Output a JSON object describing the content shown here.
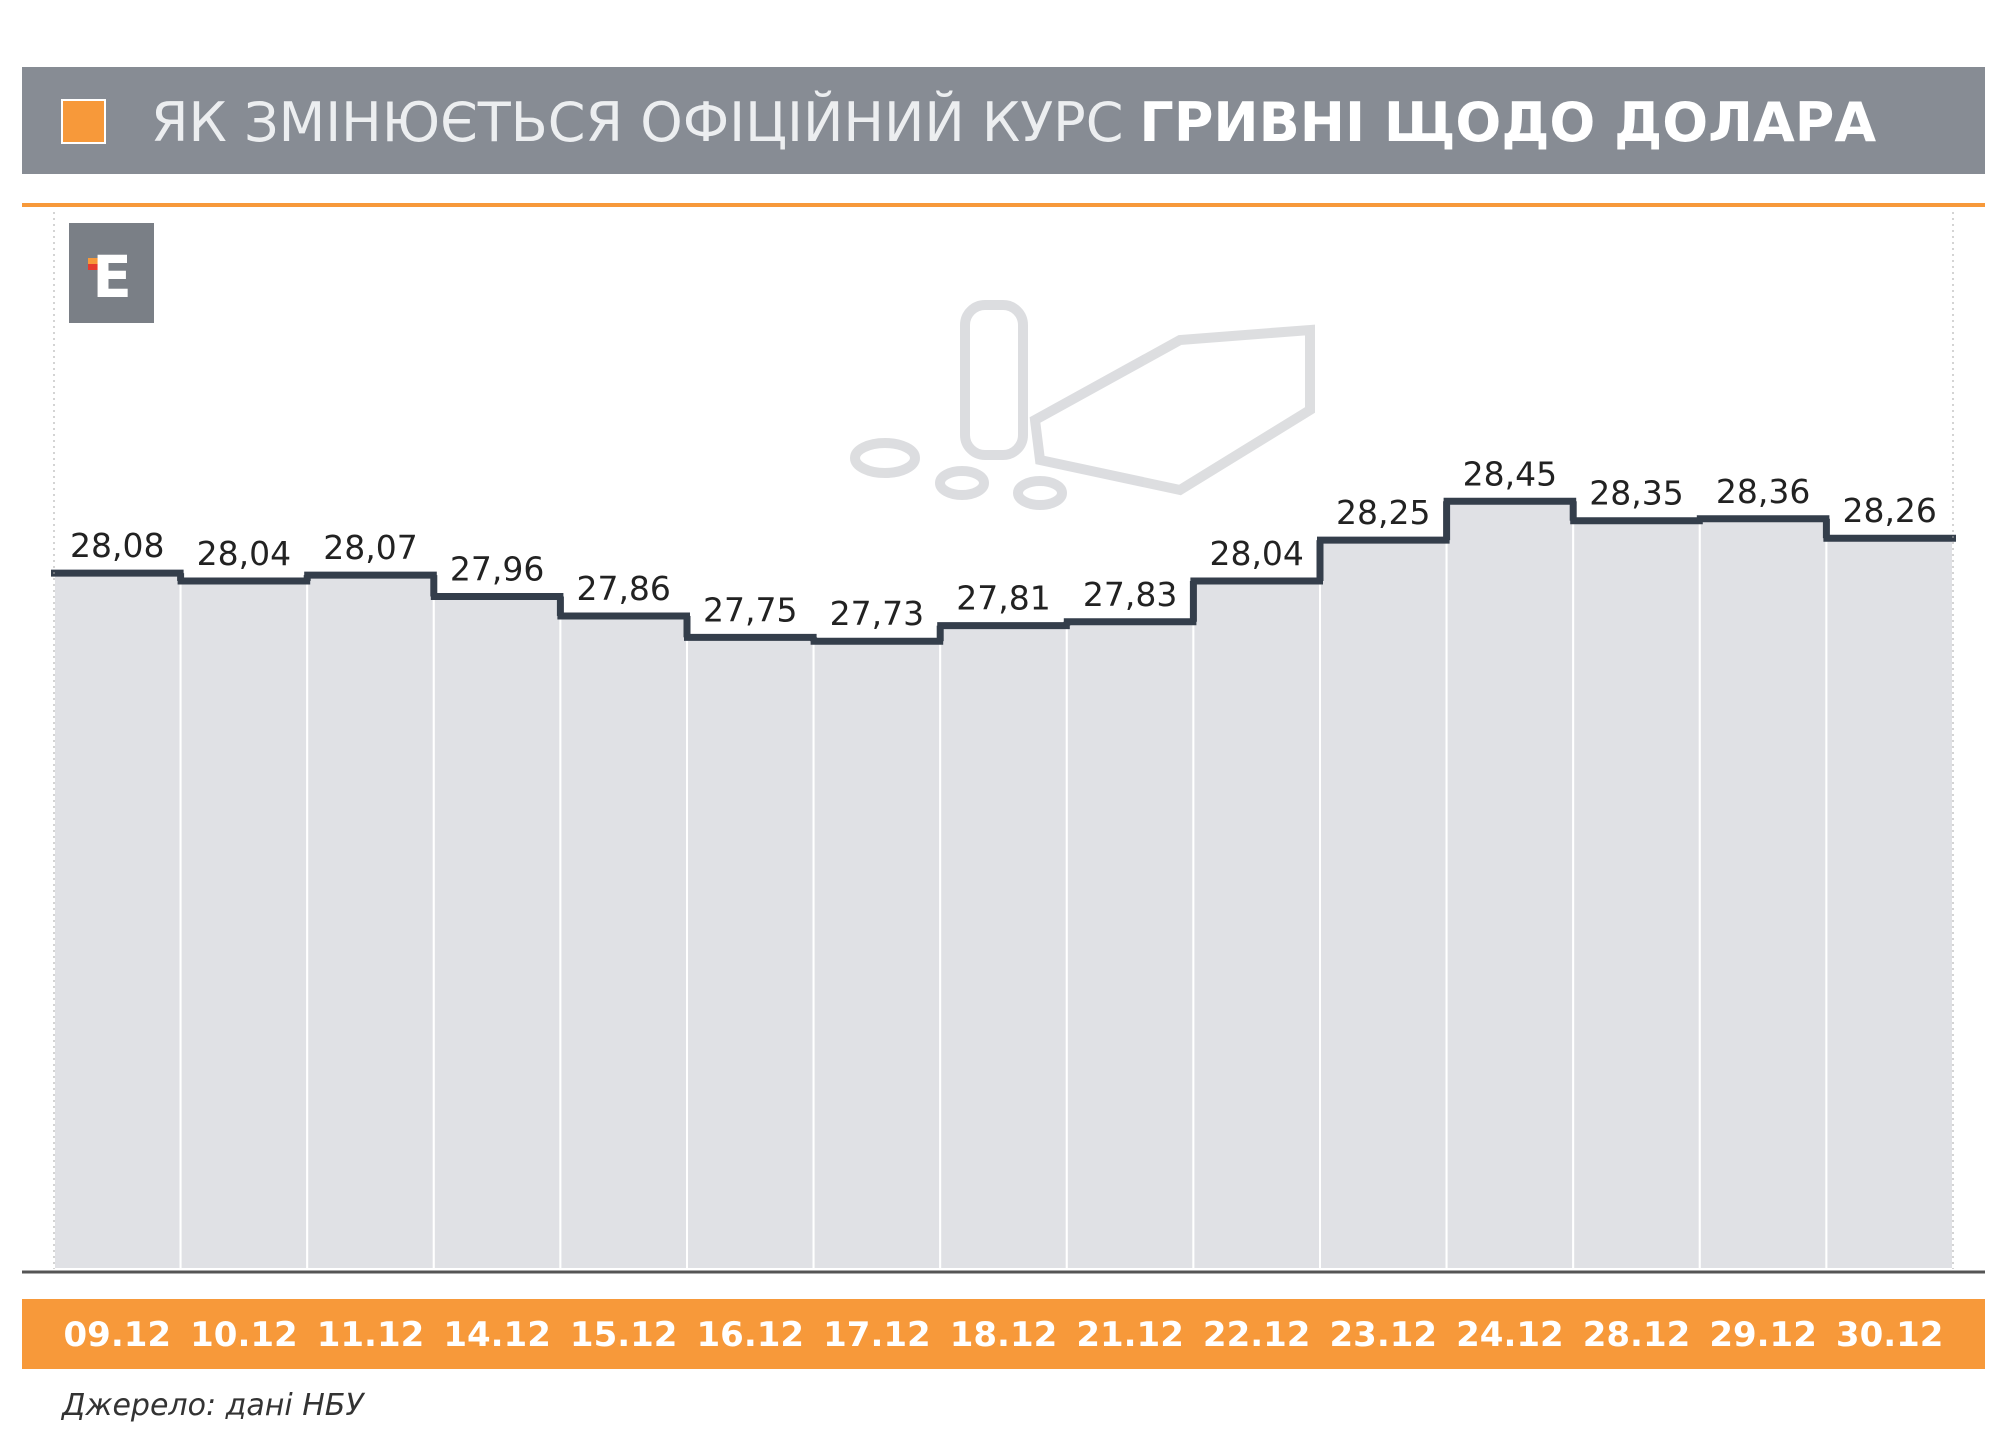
{
  "chart_data": {
    "type": "bar",
    "title_regular": "ЯК ЗМІНЮЄТЬСЯ ОФІЦІЙНИЙ КУРС",
    "title_bold": "ГРИВНІ ЩОДО ДОЛАРА",
    "logo": "Е",
    "source": "Джерело: дані НБУ",
    "categories": [
      "09.12",
      "10.12",
      "11.12",
      "14.12",
      "15.12",
      "16.12",
      "17.12",
      "18.12",
      "21.12",
      "22.12",
      "23.12",
      "24.12",
      "28.12",
      "29.12",
      "30.12"
    ],
    "values": [
      28.08,
      28.04,
      28.07,
      27.96,
      27.86,
      27.75,
      27.73,
      27.81,
      27.83,
      28.04,
      28.25,
      28.45,
      28.35,
      28.36,
      28.26
    ],
    "value_labels": [
      "28,08",
      "28,04",
      "28,07",
      "27,96",
      "27,86",
      "27,75",
      "27,73",
      "27,81",
      "27,83",
      "28,04",
      "28,25",
      "28,45",
      "28,35",
      "28,36",
      "28,26"
    ],
    "color": "#e0e1e5",
    "line_color": "#343e4b",
    "ylim": [
      24.5,
      30
    ]
  }
}
